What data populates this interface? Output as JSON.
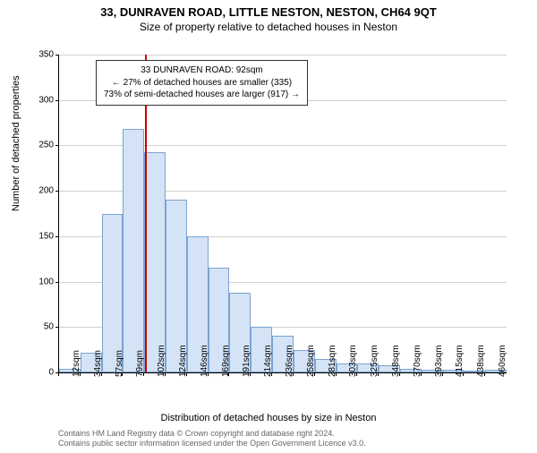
{
  "title_main": "33, DUNRAVEN ROAD, LITTLE NESTON, NESTON, CH64 9QT",
  "title_sub": "Size of property relative to detached houses in Neston",
  "chart": {
    "type": "histogram",
    "ylabel": "Number of detached properties",
    "xlabel": "Distribution of detached houses by size in Neston",
    "ylim": [
      0,
      350
    ],
    "ytick_step": 50,
    "background_color": "#ffffff",
    "grid_color": "#d0d0d0",
    "bar_fill": "#d4e3f5",
    "bar_stroke": "#7ba3d0",
    "marker_color": "#cc0000",
    "marker_value": 92,
    "categories": [
      "12sqm",
      "34sqm",
      "57sqm",
      "79sqm",
      "102sqm",
      "124sqm",
      "146sqm",
      "169sqm",
      "191sqm",
      "214sqm",
      "236sqm",
      "258sqm",
      "281sqm",
      "303sqm",
      "325sqm",
      "348sqm",
      "370sqm",
      "393sqm",
      "415sqm",
      "438sqm",
      "460sqm"
    ],
    "values": [
      4,
      22,
      175,
      268,
      243,
      190,
      150,
      115,
      88,
      50,
      40,
      25,
      15,
      10,
      10,
      8,
      4,
      3,
      3,
      0,
      3
    ]
  },
  "infobox": {
    "line1": "33 DUNRAVEN ROAD: 92sqm",
    "line2": "← 27% of detached houses are smaller (335)",
    "line3": "73% of semi-detached houses are larger (917) →"
  },
  "attribution": {
    "line1": "Contains HM Land Registry data © Crown copyright and database right 2024.",
    "line2": "Contains public sector information licensed under the Open Government Licence v3.0."
  }
}
